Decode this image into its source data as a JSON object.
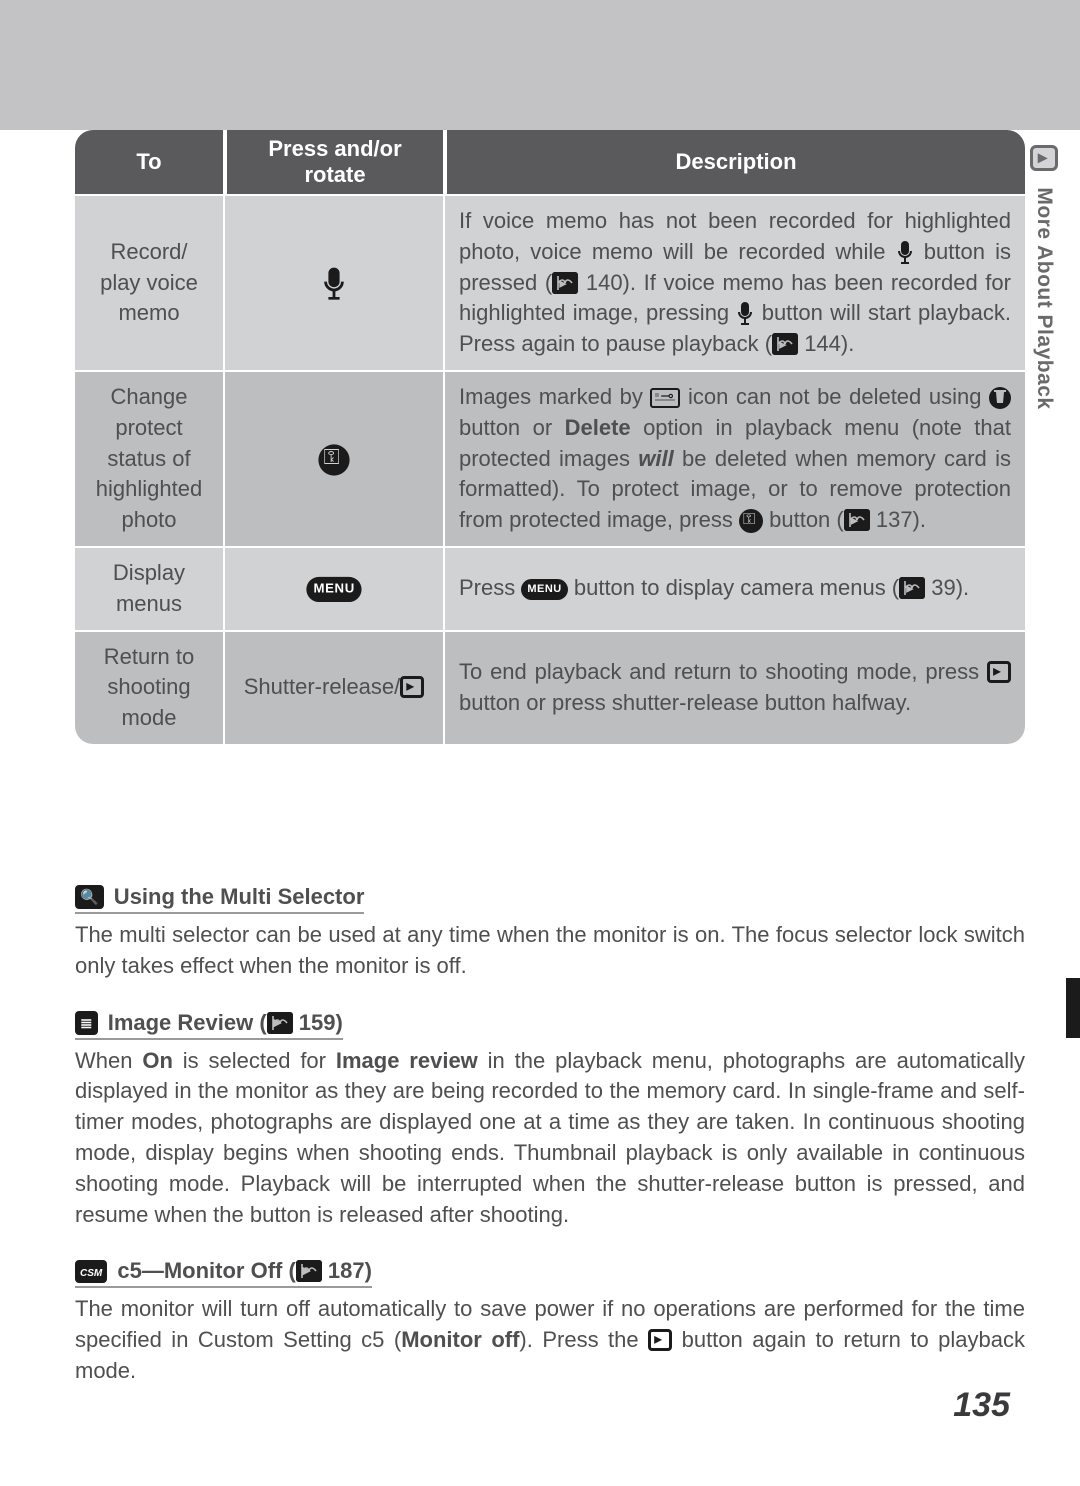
{
  "sideTab": {
    "label": "More About Playback"
  },
  "pageNumber": "135",
  "table": {
    "headers": {
      "to": "To",
      "press": "Press and/or rotate",
      "desc": "Description"
    },
    "rows": [
      {
        "to": "Record/\nplay voice\nmemo",
        "pressIcon": "mic",
        "desc_parts": [
          "If voice memo has not been recorded for highlighted photo, voice memo will be recorded while ",
          {
            "icon": "mic-inline"
          },
          " button is pressed (",
          {
            "icon": "page"
          },
          " 140).  If voice memo has been recorded for highlighted image, pressing ",
          {
            "icon": "mic-inline"
          },
          " button will start playback.  Press again to pause playback (",
          {
            "icon": "page"
          },
          " 144)."
        ],
        "alt": true
      },
      {
        "to": "Change\nprotect\nstatus of\nhighlighted\nphoto",
        "pressIcon": "key",
        "desc_parts": [
          "Images marked by ",
          {
            "icon": "protect-box"
          },
          " icon can not be deleted using ",
          {
            "icon": "trash"
          },
          " button or ",
          {
            "bold": "Delete"
          },
          " option in playback menu (note that protected images ",
          {
            "italic-bold": "will"
          },
          " be deleted when memory card is formatted).  To protect image, or to remove protection from protected image, press ",
          {
            "icon": "key-round"
          },
          " button (",
          {
            "icon": "page"
          },
          " 137)."
        ],
        "alt": false
      },
      {
        "to": "Display\nmenus",
        "pressIcon": "menu",
        "desc_parts": [
          "Press ",
          {
            "icon": "menu-pill"
          },
          " button to display camera menus (",
          {
            "icon": "page"
          },
          " 39)."
        ],
        "alt": true
      },
      {
        "to": "Return to\nshooting\nmode",
        "pressText": "Shutter-release/",
        "pressIcon": "playback-sq",
        "desc_parts": [
          "To end playback and return to shooting mode, press ",
          {
            "icon": "playback-sq"
          },
          " button or press shutter-release button halfway."
        ],
        "alt": false
      }
    ]
  },
  "notes": [
    {
      "badgeIcon": "magnify",
      "title": "Using the Multi Selector",
      "body_parts": [
        "The multi selector can be used at any time when the monitor is on.  The focus selector lock switch only takes effect when the monitor is off."
      ]
    },
    {
      "badgeIcon": "list",
      "title_parts": [
        "Image Review (",
        {
          "icon": "page"
        },
        " 159)"
      ],
      "body_parts": [
        "When ",
        {
          "bold": "On"
        },
        " is selected for ",
        {
          "bold": "Image review"
        },
        " in the playback menu, photographs are automatically displayed in the monitor as they are being recorded to the memory card.  In single-frame and self-timer modes, photographs are displayed one at a time as they are taken.  In continuous shooting mode, display begins when shooting ends.  Thumbnail playback is only available in continuous shooting mode.  Playback will be interrupted when the shutter-release button is pressed, and resume when the button is released after shooting."
      ]
    },
    {
      "badgeIcon": "csm",
      "title_parts": [
        "c5—Monitor Off (",
        {
          "icon": "page"
        },
        " 187)"
      ],
      "body_parts": [
        "The monitor will turn off automatically to save power if no operations are performed for the time specified in Custom Setting c5 (",
        {
          "bold": "Monitor off"
        },
        ").  Press the ",
        {
          "icon": "playback-sq"
        },
        " button again to return to playback mode."
      ]
    }
  ],
  "colors": {
    "header_bg": "#5a5a5c",
    "row_bg": "#bdbec0",
    "row_alt_bg": "#d1d2d4",
    "text": "#4f4f51",
    "topbar": "#c3c3c5"
  }
}
